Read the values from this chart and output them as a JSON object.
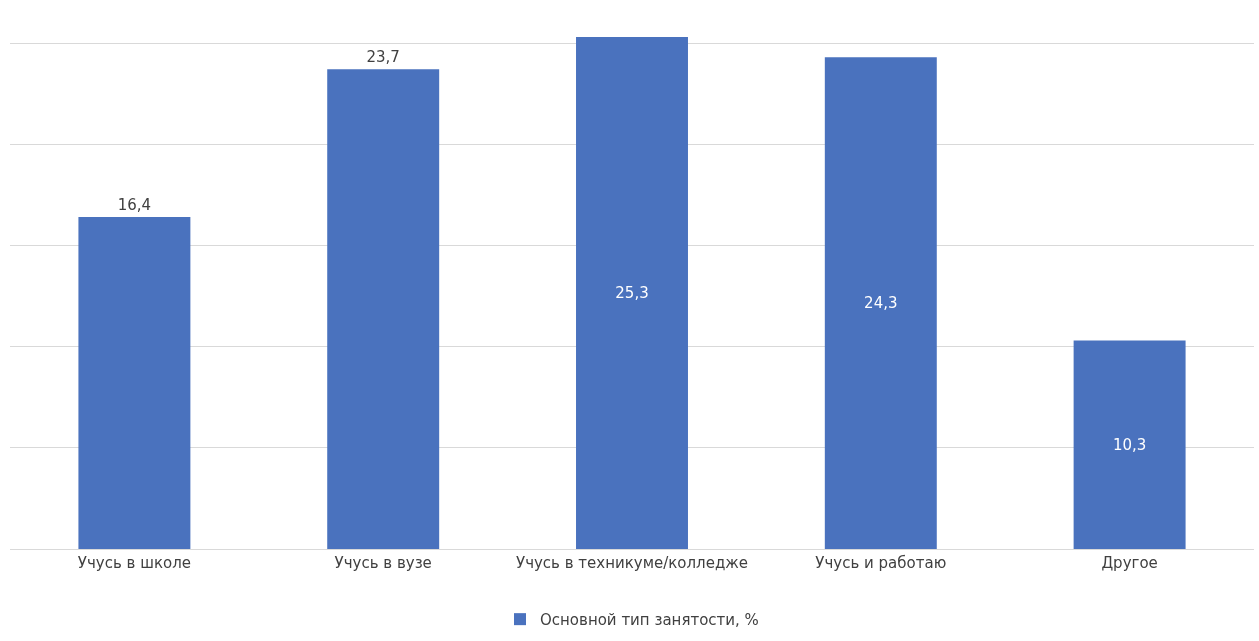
{
  "chart_data": {
    "type": "bar",
    "categories": [
      "Учусь в школе",
      "Учусь в вузе",
      "Учусь в техникуме/колледже",
      "Учусь и работаю",
      "Другое"
    ],
    "series": [
      {
        "name": "Основной тип занятости, %",
        "color": "#4a72be",
        "values": [
          16.4,
          23.7,
          25.3,
          24.3,
          10.3
        ],
        "value_labels": [
          "16,4",
          "23,7",
          "25,3",
          "24,3",
          "10,3"
        ]
      }
    ],
    "tick_labels": "x",
    "grid": "y",
    "legend": "bottom"
  }
}
